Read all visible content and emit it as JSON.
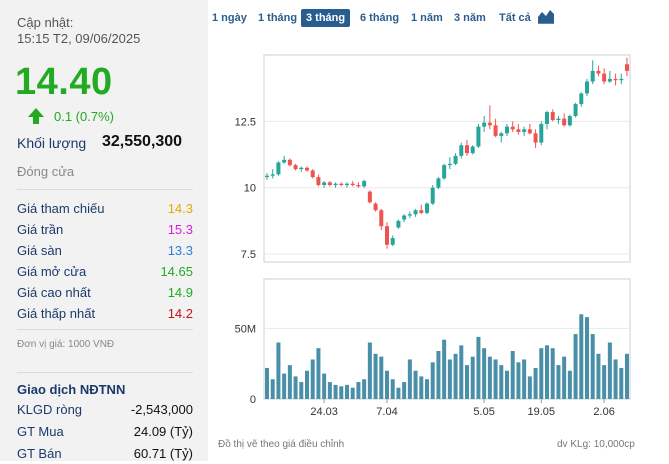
{
  "left": {
    "updated_label": "Cập nhật:",
    "updated_time": "15:15 T2, 09/06/2025",
    "price": "14.40",
    "change": "0.1 (0.7%)",
    "volume_label": "Khối lượng",
    "volume_value": "32,550,300",
    "status": "Đóng cửa",
    "rows": [
      {
        "label": "Giá tham chiếu",
        "value": "14.3",
        "color": "#e6a800"
      },
      {
        "label": "Giá trần",
        "value": "15.3",
        "color": "#d61fd6"
      },
      {
        "label": "Giá sàn",
        "value": "13.3",
        "color": "#2a7fd4"
      },
      {
        "label": "Giá mở cửa",
        "value": "14.65",
        "color": "#22aa22"
      },
      {
        "label": "Giá cao nhất",
        "value": "14.9",
        "color": "#22aa22"
      },
      {
        "label": "Giá thấp nhất",
        "value": "14.2",
        "color": "#cc1111"
      }
    ],
    "unit": "Đơn vị giá: 1000 VNĐ",
    "foreign_title": "Giao dịch NĐTNN",
    "foreign_rows": [
      {
        "label": "KLGD ròng",
        "value": "-2,543,000"
      },
      {
        "label": "GT Mua",
        "value": "24.09 (Tỷ)"
      },
      {
        "label": "GT Bán",
        "value": "60.71 (Tỷ)"
      }
    ]
  },
  "tabs": [
    {
      "label": "1 ngày",
      "active": false
    },
    {
      "label": "1 tháng",
      "active": false
    },
    {
      "label": "3 tháng",
      "active": true
    },
    {
      "label": "6 tháng",
      "active": false
    },
    {
      "label": "1 năm",
      "active": false
    },
    {
      "label": "3 năm",
      "active": false
    },
    {
      "label": "Tất cả",
      "active": false
    }
  ],
  "chart_icon": "area-chart-icon",
  "footer": {
    "note": "Đồ thị vẽ theo giá điều chỉnh",
    "volume_unit": "dv KLg: 10,000cp"
  },
  "chart_data": {
    "type": "candlestick",
    "y_ticks": [
      "7.5",
      "10",
      "12.5"
    ],
    "y_tick_values": [
      7.5,
      10,
      12.5
    ],
    "ylim": [
      7.2,
      15.0
    ],
    "vol_ticks": [
      "0",
      "50M"
    ],
    "vol_tick_values": [
      0,
      50
    ],
    "vol_lim": [
      0,
      85
    ],
    "x_ticks": [
      "24.03",
      "7.04",
      "5.05",
      "19.05",
      "2.06"
    ],
    "x_tick_index": [
      10,
      21,
      38,
      48,
      59
    ],
    "colors": {
      "up": "#26a69a",
      "down": "#ef5350",
      "volume": "#4a8fa8"
    },
    "candles": [
      [
        10.4,
        10.55,
        10.3,
        10.45,
        22
      ],
      [
        10.45,
        10.7,
        10.35,
        10.5,
        14
      ],
      [
        10.5,
        11.0,
        10.45,
        10.95,
        40
      ],
      [
        10.95,
        11.2,
        10.9,
        11.05,
        18
      ],
      [
        11.05,
        11.1,
        10.8,
        10.85,
        24
      ],
      [
        10.85,
        10.9,
        10.65,
        10.7,
        16
      ],
      [
        10.7,
        10.8,
        10.6,
        10.75,
        12
      ],
      [
        10.75,
        10.8,
        10.6,
        10.65,
        20
      ],
      [
        10.65,
        10.7,
        10.35,
        10.4,
        28
      ],
      [
        10.4,
        10.5,
        10.05,
        10.1,
        36
      ],
      [
        10.1,
        10.25,
        10.0,
        10.2,
        18
      ],
      [
        10.2,
        10.25,
        10.05,
        10.1,
        12
      ],
      [
        10.1,
        10.2,
        10.0,
        10.15,
        10
      ],
      [
        10.15,
        10.2,
        10.05,
        10.1,
        9
      ],
      [
        10.1,
        10.2,
        10.0,
        10.15,
        10
      ],
      [
        10.15,
        10.25,
        10.05,
        10.1,
        8
      ],
      [
        10.1,
        10.2,
        10.0,
        10.05,
        12
      ],
      [
        10.05,
        10.3,
        10.0,
        10.25,
        14
      ],
      [
        9.85,
        9.9,
        9.4,
        9.45,
        40
      ],
      [
        9.4,
        9.45,
        9.1,
        9.15,
        32
      ],
      [
        9.15,
        9.2,
        8.4,
        8.55,
        30
      ],
      [
        8.55,
        8.7,
        7.7,
        7.85,
        20
      ],
      [
        7.85,
        8.2,
        7.8,
        8.1,
        14
      ],
      [
        8.5,
        8.8,
        8.45,
        8.75,
        8
      ],
      [
        8.8,
        9.0,
        8.7,
        8.95,
        12
      ],
      [
        8.95,
        9.1,
        8.85,
        9.0,
        28
      ],
      [
        9.0,
        9.2,
        8.9,
        9.15,
        20
      ],
      [
        9.15,
        9.35,
        9.0,
        9.05,
        16
      ],
      [
        9.05,
        9.45,
        9.0,
        9.4,
        14
      ],
      [
        9.4,
        10.1,
        9.35,
        10.0,
        26
      ],
      [
        10.0,
        10.4,
        9.95,
        10.35,
        34
      ],
      [
        10.35,
        10.9,
        10.3,
        10.85,
        42
      ],
      [
        10.85,
        11.15,
        10.7,
        10.9,
        28
      ],
      [
        10.9,
        11.3,
        10.85,
        11.2,
        32
      ],
      [
        11.2,
        11.7,
        11.1,
        11.6,
        38
      ],
      [
        11.6,
        11.8,
        11.2,
        11.3,
        24
      ],
      [
        11.3,
        11.6,
        11.25,
        11.55,
        30
      ],
      [
        11.55,
        12.4,
        11.5,
        12.3,
        44
      ],
      [
        12.3,
        12.7,
        12.1,
        12.45,
        36
      ],
      [
        12.45,
        13.1,
        12.2,
        12.35,
        30
      ],
      [
        12.35,
        12.6,
        11.9,
        11.95,
        28
      ],
      [
        11.95,
        12.1,
        11.7,
        12.05,
        24
      ],
      [
        12.05,
        12.4,
        11.95,
        12.3,
        20
      ],
      [
        12.3,
        12.5,
        12.1,
        12.2,
        34
      ],
      [
        12.2,
        12.4,
        12.0,
        12.1,
        26
      ],
      [
        12.1,
        12.3,
        11.95,
        12.2,
        28
      ],
      [
        12.2,
        12.4,
        12.0,
        12.05,
        16
      ],
      [
        12.05,
        12.2,
        11.5,
        11.7,
        22
      ],
      [
        11.7,
        12.5,
        11.6,
        12.4,
        36
      ],
      [
        12.4,
        12.9,
        12.2,
        12.85,
        38
      ],
      [
        12.85,
        12.95,
        12.5,
        12.55,
        36
      ],
      [
        12.55,
        12.7,
        12.4,
        12.6,
        24
      ],
      [
        12.6,
        12.8,
        12.3,
        12.35,
        30
      ],
      [
        12.35,
        12.75,
        12.3,
        12.7,
        20
      ],
      [
        12.7,
        13.2,
        12.65,
        13.15,
        46
      ],
      [
        13.15,
        13.6,
        13.05,
        13.55,
        60
      ],
      [
        13.55,
        14.1,
        13.45,
        14.0,
        58
      ],
      [
        14.0,
        14.8,
        13.9,
        14.4,
        46
      ],
      [
        14.4,
        14.6,
        14.2,
        14.3,
        32
      ],
      [
        14.3,
        14.5,
        13.9,
        14.0,
        24
      ],
      [
        14.0,
        14.4,
        13.95,
        14.1,
        40
      ],
      [
        14.1,
        14.3,
        13.85,
        14.05,
        28
      ],
      [
        14.05,
        14.3,
        13.9,
        14.1,
        22
      ],
      [
        14.65,
        14.9,
        14.2,
        14.4,
        32
      ]
    ]
  }
}
